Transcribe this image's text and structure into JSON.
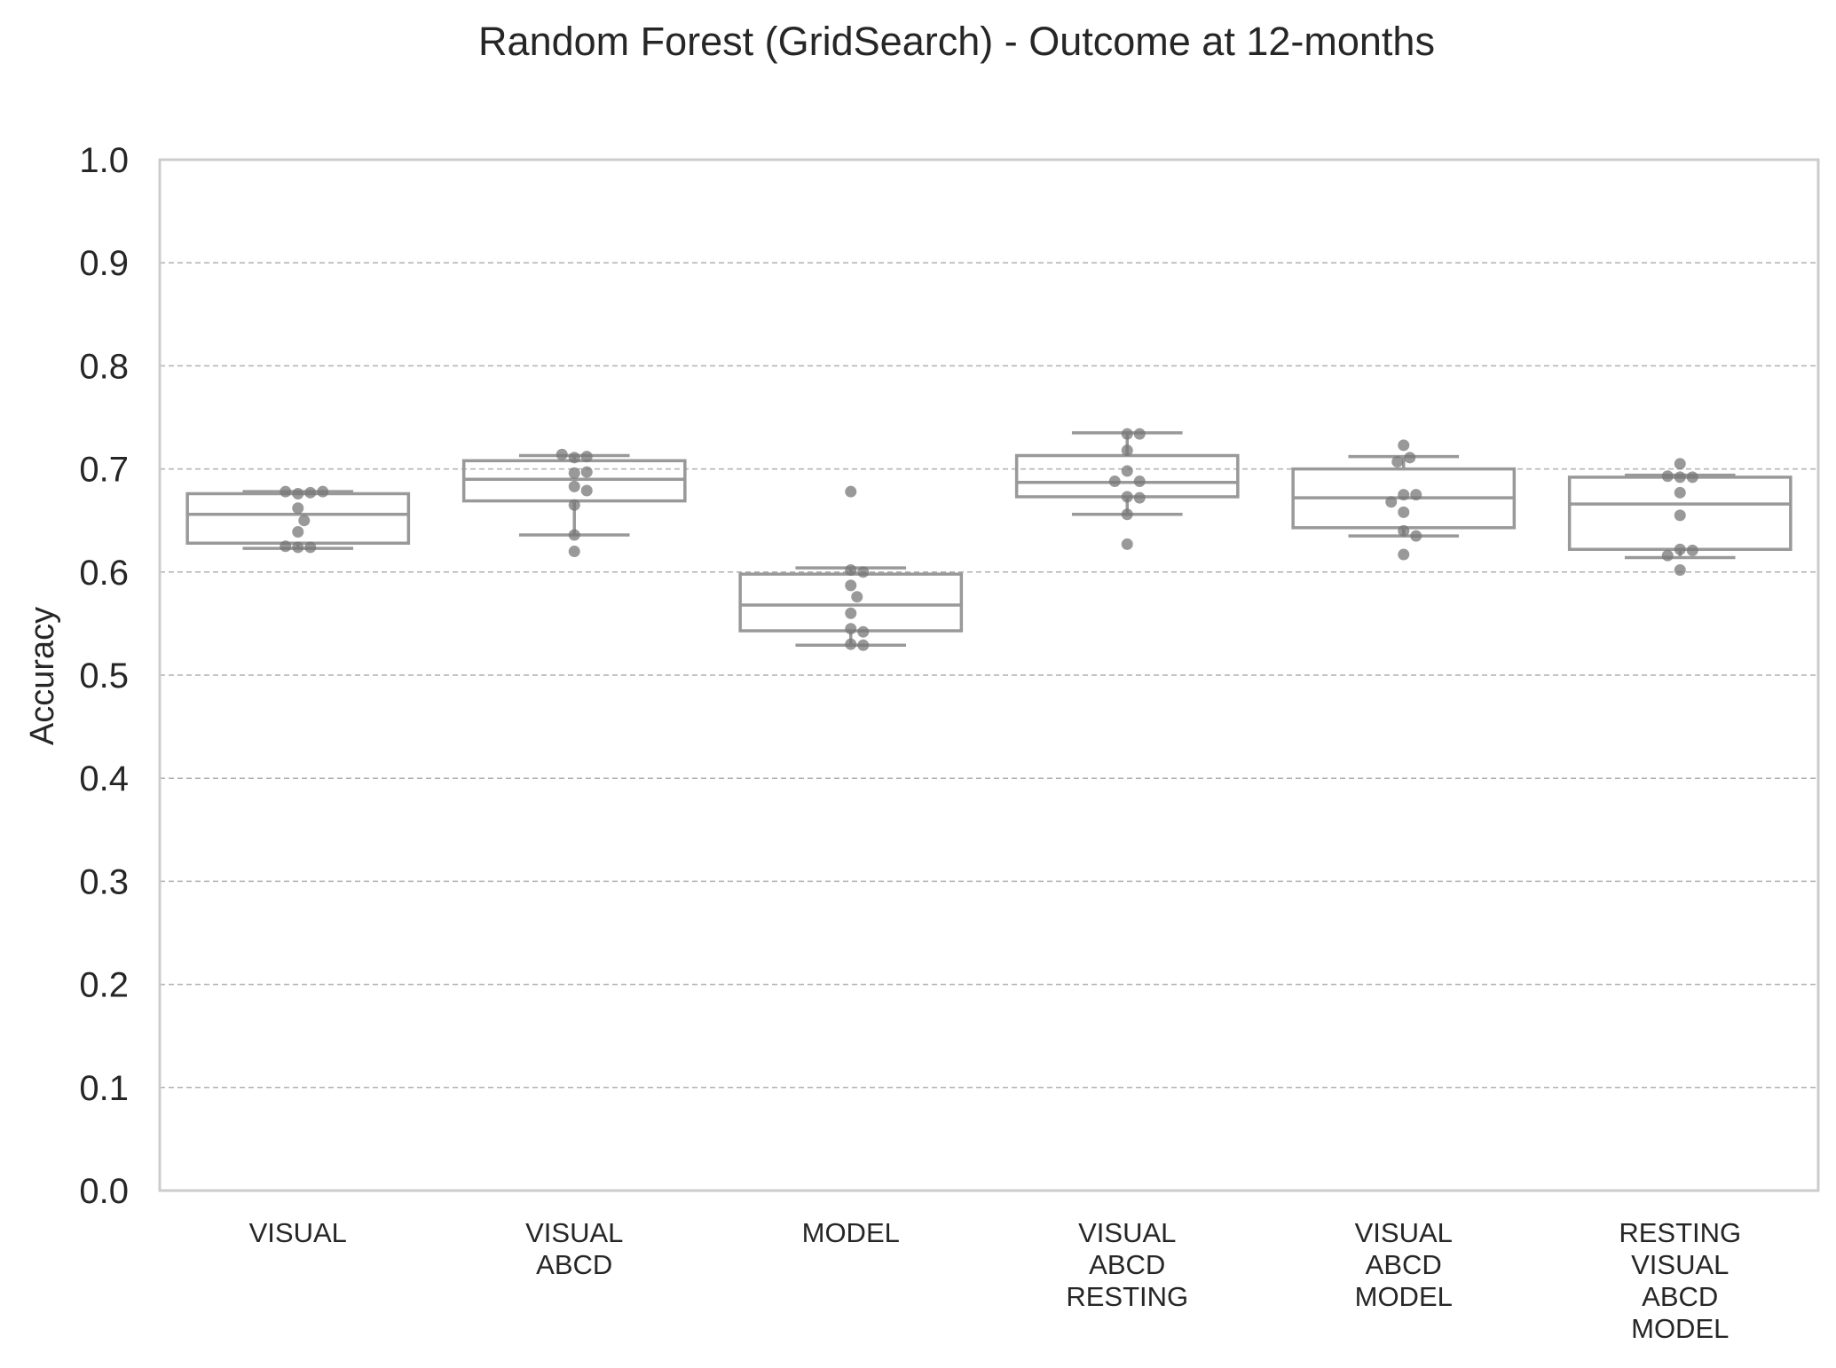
{
  "chart_data": {
    "type": "box",
    "title": "Random Forest (GridSearch) - Outcome at 12-months",
    "xlabel": "",
    "ylabel": "Accuracy",
    "ylim": [
      0.0,
      1.0
    ],
    "yticks": [
      "0.0",
      "0.1",
      "0.2",
      "0.3",
      "0.4",
      "0.5",
      "0.6",
      "0.7",
      "0.8",
      "0.9",
      "1.0"
    ],
    "grid": "horizontal dashed",
    "categories": [
      [
        "VISUAL"
      ],
      [
        "VISUAL",
        "ABCD"
      ],
      [
        "MODEL"
      ],
      [
        "VISUAL",
        "ABCD",
        "RESTING"
      ],
      [
        "VISUAL",
        "ABCD",
        "MODEL"
      ],
      [
        "RESTING",
        "VISUAL",
        "ABCD",
        "MODEL"
      ]
    ],
    "boxes": [
      {
        "whisker_low": 0.623,
        "q1": 0.628,
        "median": 0.656,
        "q3": 0.676,
        "whisker_high": 0.678
      },
      {
        "whisker_low": 0.636,
        "q1": 0.669,
        "median": 0.69,
        "q3": 0.708,
        "whisker_high": 0.713
      },
      {
        "whisker_low": 0.529,
        "q1": 0.543,
        "median": 0.568,
        "q3": 0.598,
        "whisker_high": 0.604
      },
      {
        "whisker_low": 0.656,
        "q1": 0.673,
        "median": 0.687,
        "q3": 0.713,
        "whisker_high": 0.735
      },
      {
        "whisker_low": 0.635,
        "q1": 0.643,
        "median": 0.672,
        "q3": 0.7,
        "whisker_high": 0.712
      },
      {
        "whisker_low": 0.614,
        "q1": 0.622,
        "median": 0.666,
        "q3": 0.692,
        "whisker_high": 0.694
      }
    ],
    "points": [
      [
        0.676,
        0.677,
        0.678,
        0.678,
        0.662,
        0.65,
        0.639,
        0.624,
        0.624,
        0.625
      ],
      [
        0.711,
        0.712,
        0.714,
        0.696,
        0.697,
        0.683,
        0.679,
        0.665,
        0.636,
        0.62
      ],
      [
        0.678,
        0.602,
        0.6,
        0.587,
        0.576,
        0.56,
        0.545,
        0.542,
        0.53,
        0.529
      ],
      [
        0.734,
        0.734,
        0.718,
        0.698,
        0.688,
        0.688,
        0.673,
        0.672,
        0.656,
        0.627
      ],
      [
        0.723,
        0.711,
        0.707,
        0.675,
        0.675,
        0.668,
        0.658,
        0.64,
        0.635,
        0.617
      ],
      [
        0.705,
        0.692,
        0.692,
        0.693,
        0.677,
        0.655,
        0.622,
        0.621,
        0.616,
        0.602
      ]
    ],
    "colors": {
      "box_line": "#999999",
      "points": "#777777",
      "grid": "#b0b0b0",
      "frame": "#cccccc",
      "text": "#262626"
    }
  }
}
